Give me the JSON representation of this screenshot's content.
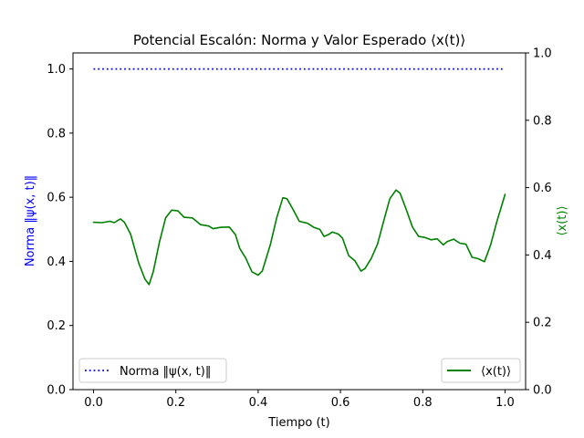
{
  "chart_data": {
    "type": "line",
    "title": "Potencial Escalón: Norma y Valor Esperado ⟨x(t)⟩",
    "xlabel": "Tiempo (t)",
    "ylabel_left": "Norma ‖ψ(x, t)‖",
    "ylabel_right": "⟨x(t)⟩",
    "xlim": [
      -0.05,
      1.05
    ],
    "ylim_left": [
      0.0,
      1.05
    ],
    "ylim_right": [
      0.0,
      1.0
    ],
    "x_ticks": [
      "0.0",
      "0.2",
      "0.4",
      "0.6",
      "0.8",
      "1.0"
    ],
    "y_left_ticks": [
      "0.0",
      "0.2",
      "0.4",
      "0.6",
      "0.8",
      "1.0"
    ],
    "y_right_ticks": [
      "0.0",
      "0.2",
      "0.4",
      "0.6",
      "0.8",
      "1.0"
    ],
    "grid": false,
    "colors": {
      "norm": "#0000ff",
      "expect": "#008000",
      "left_label": "#0000ff",
      "right_label": "#008000"
    },
    "series": [
      {
        "name": "Norma ‖ψ(x, t)‖",
        "axis": "left",
        "style": "dotted",
        "x": [
          0.0,
          0.25,
          0.5,
          0.75,
          1.0
        ],
        "y": [
          1.0,
          1.0,
          1.0,
          1.0,
          1.0
        ]
      },
      {
        "name": "⟨x(t)⟩",
        "axis": "right",
        "style": "solid",
        "x": [
          0.0,
          0.02,
          0.04,
          0.05,
          0.065,
          0.075,
          0.09,
          0.11,
          0.125,
          0.135,
          0.145,
          0.16,
          0.175,
          0.19,
          0.205,
          0.22,
          0.24,
          0.26,
          0.28,
          0.29,
          0.31,
          0.33,
          0.345,
          0.355,
          0.37,
          0.385,
          0.4,
          0.41,
          0.43,
          0.445,
          0.46,
          0.47,
          0.485,
          0.5,
          0.52,
          0.535,
          0.55,
          0.56,
          0.57,
          0.58,
          0.595,
          0.605,
          0.62,
          0.635,
          0.65,
          0.66,
          0.675,
          0.69,
          0.705,
          0.72,
          0.735,
          0.745,
          0.76,
          0.775,
          0.79,
          0.805,
          0.82,
          0.835,
          0.85,
          0.86,
          0.875,
          0.89,
          0.905,
          0.92,
          0.935,
          0.95,
          0.965,
          0.98,
          1.0
        ],
        "y": [
          0.497,
          0.496,
          0.5,
          0.496,
          0.507,
          0.497,
          0.462,
          0.375,
          0.328,
          0.312,
          0.35,
          0.438,
          0.51,
          0.533,
          0.531,
          0.512,
          0.51,
          0.49,
          0.486,
          0.478,
          0.482,
          0.483,
          0.46,
          0.42,
          0.39,
          0.35,
          0.34,
          0.352,
          0.432,
          0.51,
          0.57,
          0.567,
          0.535,
          0.5,
          0.494,
          0.482,
          0.476,
          0.455,
          0.46,
          0.468,
          0.462,
          0.45,
          0.398,
          0.383,
          0.352,
          0.36,
          0.39,
          0.432,
          0.5,
          0.567,
          0.593,
          0.583,
          0.535,
          0.483,
          0.455,
          0.452,
          0.445,
          0.448,
          0.43,
          0.44,
          0.447,
          0.435,
          0.432,
          0.393,
          0.389,
          0.38,
          0.43,
          0.498,
          0.58
        ]
      }
    ],
    "legend_left": {
      "position": "lower-left",
      "label": "Norma ‖ψ(x, t)‖"
    },
    "legend_right": {
      "position": "lower-right",
      "label": "⟨x(t)⟩"
    }
  }
}
